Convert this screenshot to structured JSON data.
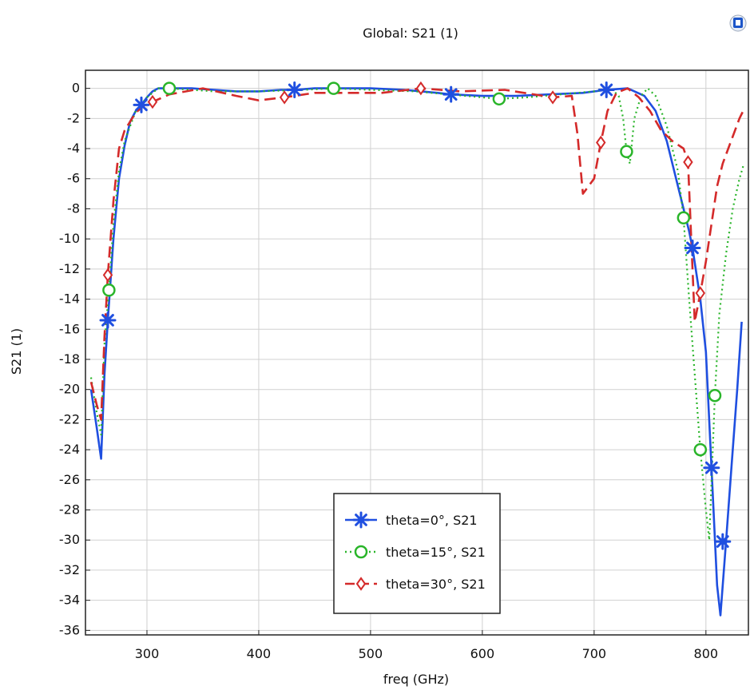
{
  "chart_data": {
    "type": "line",
    "title": "Global: S21 (1)",
    "xlabel": "freq (GHz)",
    "ylabel": "S21 (1)",
    "xlim": [
      245,
      838
    ],
    "ylim": [
      -36.3,
      1.2
    ],
    "x_ticks": [
      300,
      400,
      500,
      600,
      700,
      800
    ],
    "x_tick_labels": [
      "300",
      "400",
      "500",
      "600",
      "700",
      "800"
    ],
    "y_ticks": [
      0,
      -2,
      -4,
      -6,
      -8,
      -10,
      -12,
      -14,
      -16,
      -18,
      -20,
      -22,
      -24,
      -26,
      -28,
      -30,
      -32,
      -34,
      -36
    ],
    "y_tick_labels": [
      "0",
      "-2",
      "-4",
      "-6",
      "-8",
      "-10",
      "-12",
      "-14",
      "-16",
      "-18",
      "-20",
      "-22",
      "-24",
      "-26",
      "-28",
      "-30",
      "-32",
      "-34",
      "-36"
    ],
    "grid": true,
    "legend_position": "bottom-center",
    "series": [
      {
        "name": "theta=0°, S21",
        "color": "#1f4fe0",
        "dash": "solid",
        "marker": "asterisk",
        "x": [
          250,
          255,
          259,
          262,
          265,
          270,
          275,
          280,
          285,
          290,
          295,
          300,
          305,
          310,
          320,
          340,
          360,
          380,
          400,
          420,
          432,
          450,
          480,
          500,
          530,
          560,
          572,
          600,
          630,
          660,
          690,
          711,
          730,
          745,
          755,
          765,
          775,
          785,
          788,
          795,
          800,
          805,
          810,
          813,
          818,
          823,
          828,
          832
        ],
        "y": [
          -20.0,
          -22.5,
          -24.6,
          -19.0,
          -15.4,
          -10.0,
          -6.0,
          -3.8,
          -2.2,
          -1.5,
          -1.1,
          -0.6,
          -0.2,
          0.0,
          0.0,
          0.0,
          -0.1,
          -0.2,
          -0.2,
          -0.1,
          -0.1,
          0.0,
          0.0,
          0.0,
          -0.1,
          -0.3,
          -0.4,
          -0.5,
          -0.5,
          -0.4,
          -0.3,
          -0.1,
          0.0,
          -0.5,
          -1.5,
          -3.5,
          -6.5,
          -9.5,
          -10.6,
          -14.0,
          -17.5,
          -25.2,
          -33.0,
          -35.0,
          -30.1,
          -25.0,
          -20.0,
          -15.5
        ],
        "marker_x": [
          265,
          295,
          432,
          572,
          711,
          788,
          805,
          815
        ],
        "marker_y": [
          -15.4,
          -1.1,
          -0.1,
          -0.4,
          -0.1,
          -10.6,
          -25.2,
          -30.1
        ]
      },
      {
        "name": "theta=15°, S21",
        "color": "#2ab52a",
        "dash": "dotted",
        "marker": "circle",
        "x": [
          250,
          255,
          259,
          262,
          266,
          270,
          275,
          280,
          290,
          300,
          310,
          320,
          340,
          360,
          400,
          440,
          467,
          500,
          540,
          570,
          600,
          615,
          640,
          670,
          700,
          715,
          722,
          726,
          729,
          732,
          736,
          742,
          748,
          755,
          765,
          775,
          780,
          785,
          790,
          795,
          800,
          803,
          808,
          812,
          818,
          824,
          830,
          834
        ],
        "y": [
          -19.2,
          -21.5,
          -23.0,
          -17.0,
          -13.4,
          -9.0,
          -5.5,
          -3.5,
          -1.5,
          -0.6,
          0.0,
          0.0,
          -0.1,
          -0.2,
          -0.2,
          -0.1,
          0.0,
          -0.1,
          -0.2,
          -0.4,
          -0.6,
          -0.7,
          -0.6,
          -0.4,
          -0.2,
          0.0,
          -0.5,
          -2.0,
          -4.2,
          -5.0,
          -2.0,
          -0.5,
          0.0,
          -0.5,
          -2.5,
          -5.5,
          -8.6,
          -14.0,
          -19.0,
          -24.0,
          -28.0,
          -30.0,
          -20.4,
          -15.0,
          -11.0,
          -8.0,
          -6.0,
          -5.0
        ],
        "marker_x": [
          266,
          320,
          467,
          615,
          729,
          780,
          795,
          808
        ],
        "marker_y": [
          -13.4,
          0.0,
          0.0,
          -0.7,
          -4.2,
          -8.6,
          -24.0,
          -20.4
        ]
      },
      {
        "name": "theta=30°, S21",
        "color": "#d42a2a",
        "dash": "dashed",
        "marker": "diamond",
        "x": [
          250,
          255,
          259,
          262,
          265,
          270,
          275,
          280,
          290,
          300,
          305,
          320,
          350,
          380,
          400,
          423,
          450,
          480,
          510,
          545,
          580,
          620,
          663,
          680,
          685,
          690,
          695,
          700,
          706,
          712,
          720,
          730,
          740,
          750,
          760,
          770,
          780,
          784,
          790,
          795,
          800,
          805,
          810,
          815,
          820,
          825,
          830,
          834
        ],
        "y": [
          -19.5,
          -21.0,
          -22.0,
          -16.5,
          -12.4,
          -7.5,
          -4.0,
          -2.8,
          -1.6,
          -1.0,
          -0.9,
          -0.4,
          0.0,
          -0.5,
          -0.8,
          -0.6,
          -0.3,
          -0.3,
          -0.3,
          0.0,
          -0.2,
          -0.1,
          -0.6,
          -0.5,
          -3.0,
          -7.0,
          -6.5,
          -6.0,
          -3.6,
          -1.5,
          -0.3,
          0.0,
          -0.6,
          -1.5,
          -2.8,
          -3.5,
          -4.0,
          -4.9,
          -15.5,
          -13.6,
          -11.5,
          -9.0,
          -6.5,
          -5.0,
          -4.0,
          -3.0,
          -2.0,
          -1.4
        ],
        "marker_x": [
          265,
          305,
          423,
          545,
          663,
          706,
          784,
          795
        ],
        "marker_y": [
          -12.4,
          -0.9,
          -0.6,
          0.0,
          -0.6,
          -3.6,
          -4.9,
          -13.6
        ]
      }
    ]
  }
}
